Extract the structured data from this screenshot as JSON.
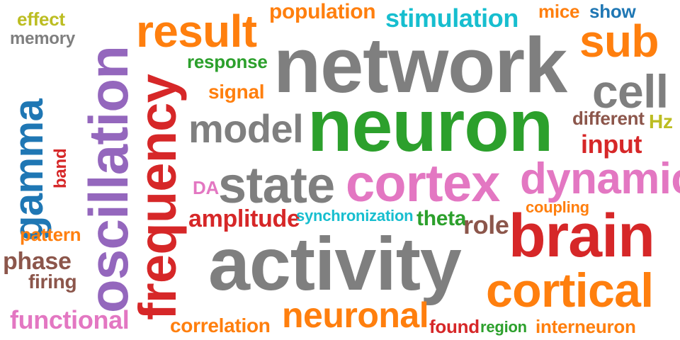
{
  "colors": {
    "gray": "#7f7f7f",
    "green": "#2ca02c",
    "red": "#d62728",
    "orange": "#ff7f0e",
    "purple": "#9467bd",
    "pink": "#e377c2",
    "blue": "#1f77b4",
    "cyan": "#17becf",
    "brown": "#8c564b",
    "olive": "#bcbd22"
  },
  "words": {
    "effect": "effect",
    "memory": "memory",
    "oscillation": "oscillation",
    "result": "result",
    "population": "population",
    "stimulation": "stimulation",
    "mice": "mice",
    "show": "show",
    "network": "network",
    "sub": "sub",
    "response": "response",
    "gamma": "gamma",
    "frequency": "frequency",
    "signal": "signal",
    "cell": "cell",
    "neuron": "neuron",
    "model": "model",
    "different": "different",
    "hz": "Hz",
    "input": "input",
    "band": "band",
    "state": "state",
    "cortex": "cortex",
    "dynamic": "dynamic",
    "da": "DA",
    "coupling": "coupling",
    "amplitude": "amplitude",
    "synchronization": "synchronization",
    "theta": "theta",
    "role": "role",
    "pattern": "pattern",
    "brain": "brain",
    "activity": "activity",
    "phase": "phase",
    "firing": "firing",
    "cortical": "cortical",
    "functional": "functional",
    "neuronal": "neuronal",
    "correlation": "correlation",
    "found": "found",
    "region": "region",
    "interneuron": "interneuron"
  }
}
